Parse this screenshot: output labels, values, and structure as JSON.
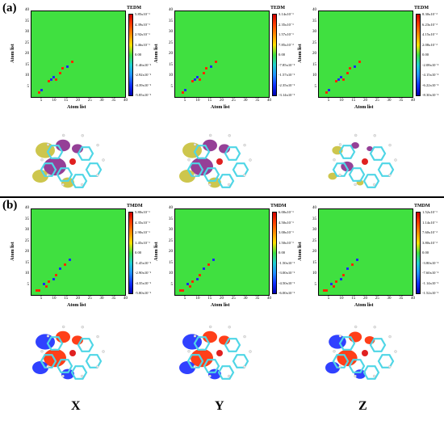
{
  "figure": {
    "axis_label": "Atom list",
    "ticks": [
      "5",
      "10",
      "15",
      "20",
      "25",
      "30",
      "35",
      "40"
    ],
    "section_a": {
      "label": "(a)",
      "colorbar_title": "TEDM",
      "panels": [
        {
          "id": "a-x",
          "ticks": [
            "5.85x10⁻¹",
            "4.39x10⁻¹",
            "2.92x10⁻¹",
            "1.46x10⁻¹",
            "0.00",
            "-1.46x10⁻¹",
            "-2.92x10⁻¹",
            "-4.39x10⁻¹",
            "-5.85x10⁻¹"
          ]
        },
        {
          "id": "a-y",
          "ticks": [
            "3.14x10⁻¹",
            "2.35x10⁻¹",
            "1.57x10⁻¹",
            "7.85x10⁻²",
            "0.00",
            "-7.85x10⁻²",
            "-1.57x10⁻¹",
            "-2.35x10⁻¹",
            "-3.14x10⁻¹"
          ]
        },
        {
          "id": "a-z",
          "ticks": [
            "8.30x10⁻²",
            "6.23x10⁻²",
            "4.15x10⁻²",
            "2.08x10⁻²",
            "0.00",
            "-2.08x10⁻²",
            "-4.15x10⁻²",
            "-6.22x10⁻²",
            "-8.30x10⁻²"
          ]
        }
      ]
    },
    "section_b": {
      "label": "(b)",
      "colorbar_title": "TMDM",
      "panels": [
        {
          "id": "b-x",
          "ticks": [
            "5.80x10⁻¹",
            "4.35x10⁻¹",
            "2.90x10⁻¹",
            "1.45x10⁻¹",
            "0.00",
            "-1.45x10⁻¹",
            "-2.90x10⁻¹",
            "-4.35x10⁻¹",
            "-5.80x10⁻¹"
          ]
        },
        {
          "id": "b-y",
          "ticks": [
            "6.00x10⁻¹",
            "4.50x10⁻¹",
            "3.00x10⁻¹",
            "1.50x10⁻¹",
            "0.00",
            "-1.50x10⁻¹",
            "-3.00x10⁻¹",
            "-4.50x10⁻¹",
            "-6.00x10⁻¹"
          ]
        },
        {
          "id": "b-z",
          "ticks": [
            "1.52x10⁻¹",
            "1.14x10⁻¹",
            "7.60x10⁻²",
            "3.80x10⁻²",
            "0.00",
            "-3.80x10⁻²",
            "-7.60x10⁻²",
            "-1.14x10⁻¹",
            "-1.52x10⁻¹"
          ]
        }
      ]
    },
    "column_labels": [
      "X",
      "Y",
      "Z"
    ],
    "colors": {
      "background_green": "#40e040",
      "positive": "#ff2a00",
      "negative": "#1a2cff",
      "isosurface_yellow": "#c8c03a",
      "isosurface_purple": "#8a2b8c",
      "carbon": "#4fd6e6",
      "hydrogen": "#e8e8e8"
    }
  }
}
